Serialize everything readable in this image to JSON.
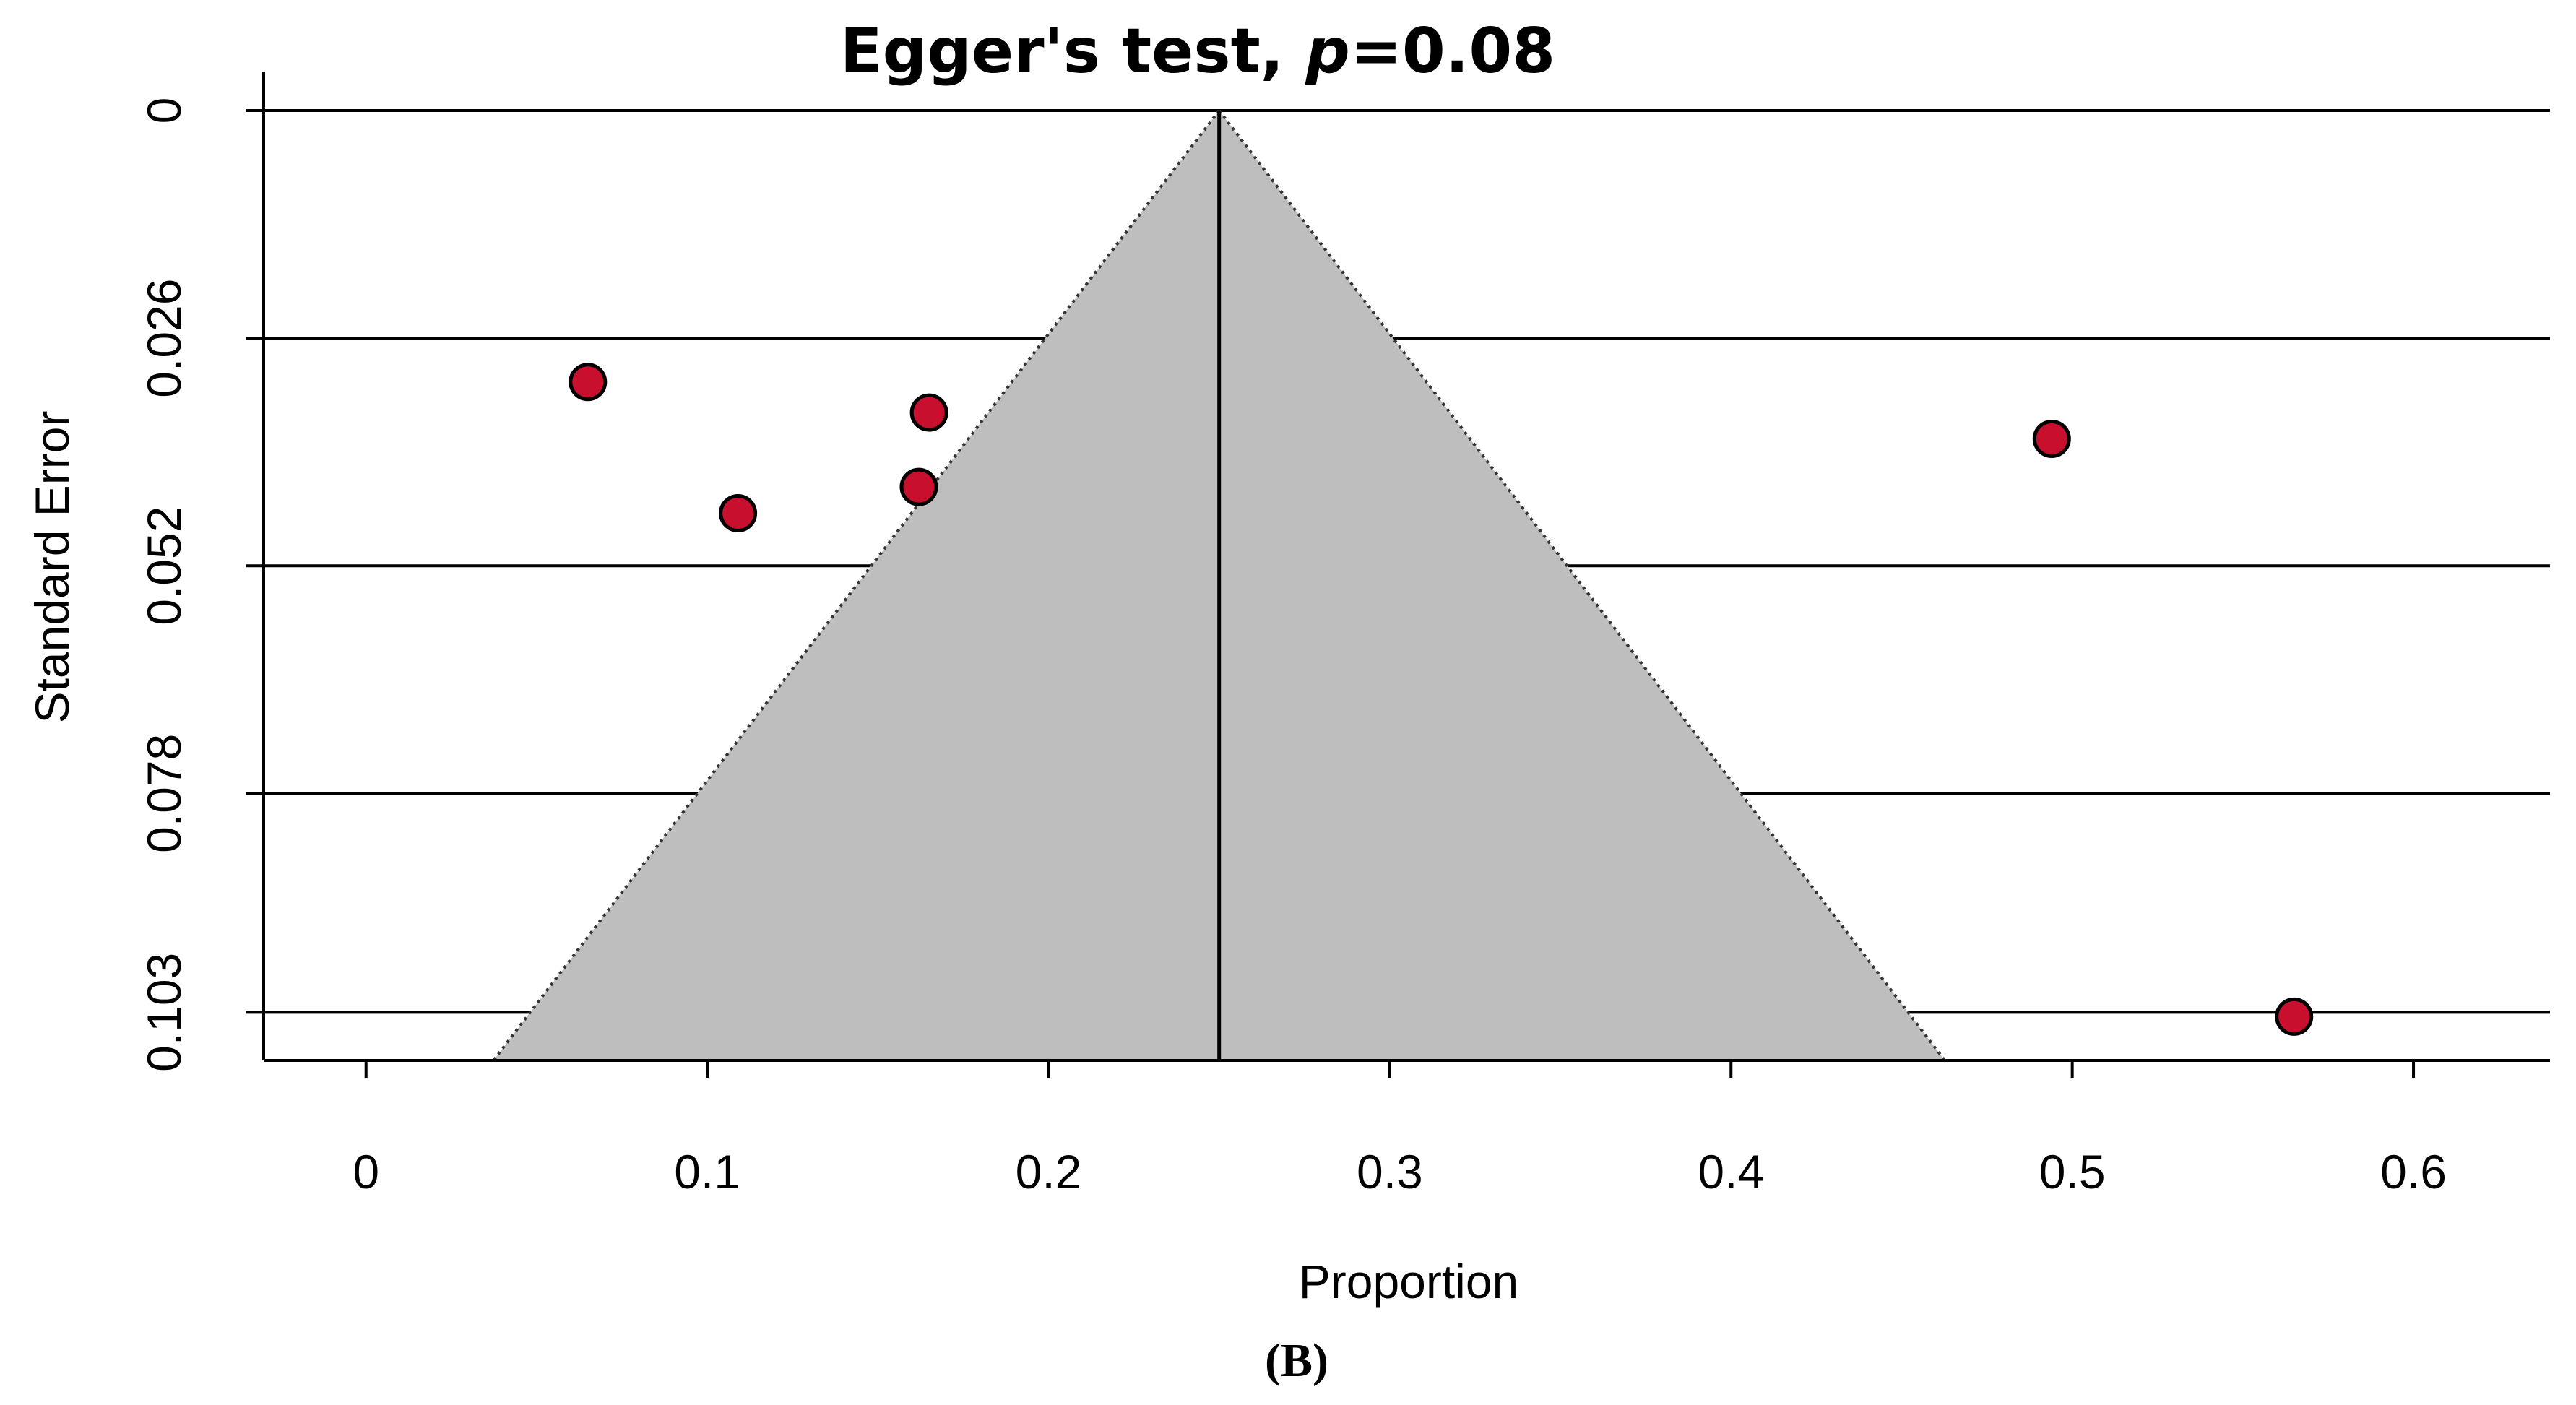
{
  "chart_data": {
    "type": "scatter",
    "title_prefix": "Egger's test, ",
    "title_italic": "p",
    "title_suffix": "=0.08",
    "xlabel": "Proportion",
    "ylabel": "Standard Error",
    "panel_label": "(B)",
    "xlim": [
      -0.03,
      0.64
    ],
    "ylim": [
      0,
      0.1085
    ],
    "y_reversed": true,
    "x_ticks": [
      0,
      0.1,
      0.2,
      0.3,
      0.4,
      0.5,
      0.6
    ],
    "x_tick_labels": [
      "0",
      "0.1",
      "0.2",
      "0.3",
      "0.4",
      "0.5",
      "0.6"
    ],
    "y_ticks": [
      0,
      0.026,
      0.052,
      0.078,
      0.103
    ],
    "y_tick_labels": [
      "0",
      "0.026",
      "0.052",
      "0.078",
      "0.103"
    ],
    "gridlines": true,
    "pooled_estimate": 0.25,
    "funnel": {
      "center": 0.25,
      "se_max": 0.1085,
      "z": 1.96,
      "color": "#bebebe"
    },
    "points": [
      {
        "x": 0.065,
        "y": 0.031
      },
      {
        "x": 0.109,
        "y": 0.046
      },
      {
        "x": 0.162,
        "y": 0.043
      },
      {
        "x": 0.165,
        "y": 0.0345
      },
      {
        "x": 0.494,
        "y": 0.0375
      },
      {
        "x": 0.565,
        "y": 0.1035
      }
    ],
    "point_color": "#c8102e"
  }
}
